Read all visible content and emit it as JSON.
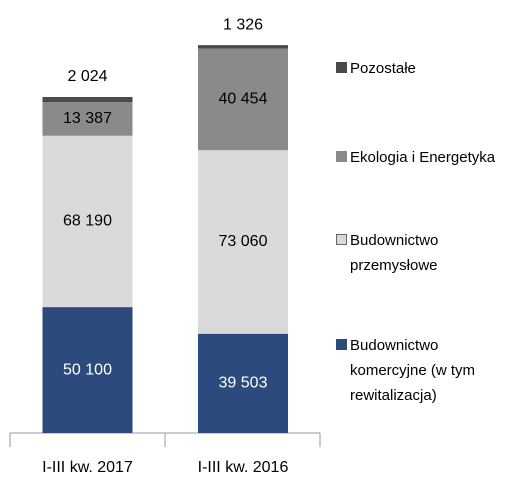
{
  "chart_data": {
    "type": "stacked_bar",
    "categories": [
      "I-III kw. 2017",
      "I-III kw. 2016"
    ],
    "series": [
      {
        "name": "Budownictwo komercyjne (w tym rewitalizacja)",
        "color": "#2d4a7c",
        "values": [
          50100,
          39503
        ],
        "value_labels": [
          "50 100",
          "39 503"
        ]
      },
      {
        "name": "Budownictwo przemysłowe",
        "color": "#dadada",
        "values": [
          68190,
          73060
        ],
        "value_labels": [
          "68 190",
          "73 060"
        ]
      },
      {
        "name": "Ekologia i Energetyka",
        "color": "#8a8a8a",
        "values": [
          13387,
          40454
        ],
        "value_labels": [
          "13 387",
          "40 454"
        ]
      },
      {
        "name": "Pozostałe",
        "color": "#4a4a4a",
        "values": [
          2024,
          1326
        ],
        "value_labels": [
          "2 024",
          "1 326"
        ]
      }
    ]
  }
}
